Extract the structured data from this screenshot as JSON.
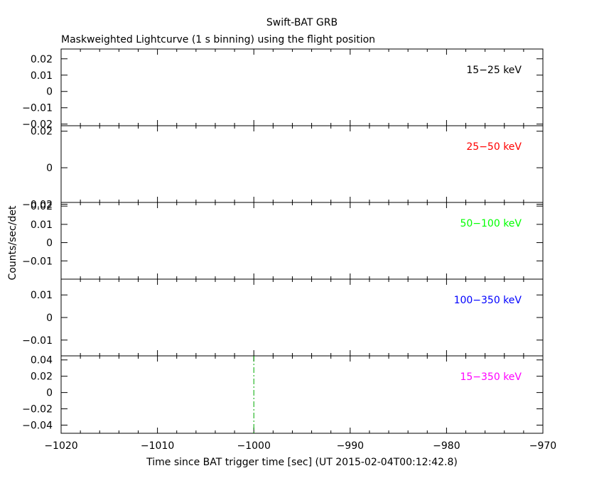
{
  "title": "Swift-BAT GRB",
  "subtitle": "Maskweighted Lightcurve (1 s binning) using the flight position",
  "colors": {
    "frame": "#000000",
    "band1": "#000000",
    "band2": "#ff0000",
    "band3": "#00ff00",
    "band4": "#0000ff",
    "band5": "#ff00ff",
    "marker": "#00aa00"
  },
  "chart_data": {
    "type": "line",
    "xlabel": "Time since BAT trigger time [sec] (UT 2015-02-04T00:12:42.8)",
    "ylabel": "Counts/sec/det",
    "xlim": [
      -1020,
      -970
    ],
    "x_ticks": [
      -1020,
      -1010,
      -1000,
      -990,
      -980,
      -970
    ],
    "x_tick_labels": [
      "−1020",
      "−1010",
      "−1000",
      "−990",
      "−980",
      "−970"
    ],
    "trigger_marker_x": -1000,
    "panels": [
      {
        "label": "15−25 keV",
        "color": "band1",
        "ylim": [
          -0.021,
          0.026
        ],
        "y_ticks": [
          -0.02,
          -0.01,
          0,
          0.01,
          0.02
        ],
        "y_tick_labels": [
          "−0.02",
          "−0.01",
          "0",
          "0.01",
          "0.02"
        ],
        "values": []
      },
      {
        "label": "25−50 keV",
        "color": "band2",
        "ylim": [
          -0.019,
          0.023
        ],
        "y_ticks": [
          -0.02,
          0,
          0.02
        ],
        "y_tick_labels": [
          "−0.02",
          "0",
          "0.02"
        ],
        "values": []
      },
      {
        "label": "50−100 keV",
        "color": "band3",
        "ylim": [
          -0.02,
          0.022
        ],
        "y_ticks": [
          -0.01,
          0,
          0.01,
          0.02
        ],
        "y_tick_labels": [
          "−0.01",
          "0",
          "0.01",
          "0.02"
        ],
        "values": []
      },
      {
        "label": "100−350 keV",
        "color": "band4",
        "ylim": [
          -0.017,
          0.017
        ],
        "y_ticks": [
          -0.01,
          0,
          0.01
        ],
        "y_tick_labels": [
          "−0.01",
          "0",
          "0.01"
        ],
        "values": []
      },
      {
        "label": "15−350 keV",
        "color": "band5",
        "ylim": [
          -0.05,
          0.045
        ],
        "y_ticks": [
          -0.04,
          -0.02,
          0,
          0.02,
          0.04
        ],
        "y_tick_labels": [
          "−0.04",
          "−0.02",
          "0",
          "0.02",
          "0.04"
        ],
        "values": []
      }
    ]
  }
}
